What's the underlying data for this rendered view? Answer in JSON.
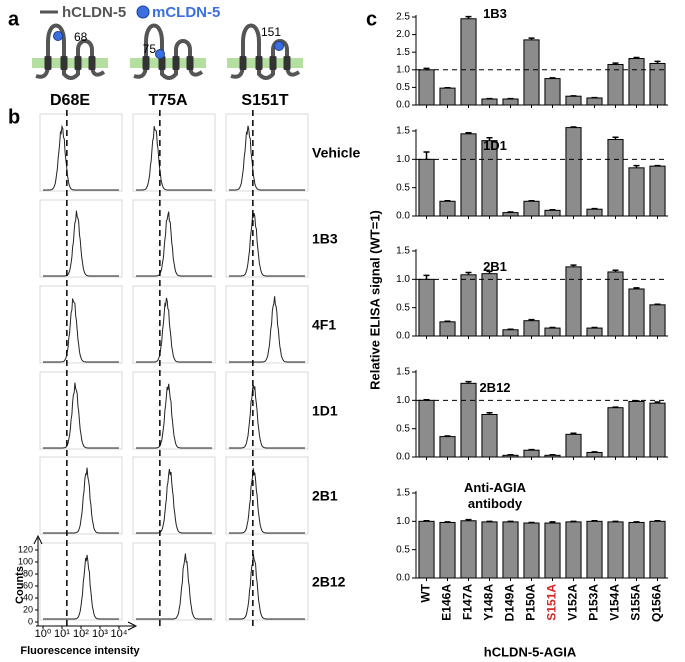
{
  "panel_a": {
    "label": "a",
    "legend": [
      {
        "name": "hCLDN-5",
        "color": "#555555"
      },
      {
        "name": "mCLDN-5",
        "color": "#3b6fe0"
      }
    ],
    "mutants": [
      {
        "label": "D68E",
        "site": "68"
      },
      {
        "label": "T75A",
        "site": "75"
      },
      {
        "label": "S151T",
        "site": "151"
      }
    ]
  },
  "panel_b": {
    "label": "b",
    "type": "flow-histograms",
    "rows": [
      "Vehicle",
      "1B3",
      "4F1",
      "1D1",
      "2B1",
      "2B12"
    ],
    "peaks": [
      [
        10,
        10,
        10
      ],
      [
        60,
        50,
        20
      ],
      [
        40,
        40,
        250
      ],
      [
        50,
        50,
        20
      ],
      [
        200,
        60,
        20
      ],
      [
        200,
        400,
        20
      ]
    ],
    "dashed_line": 18,
    "log_x": true,
    "xlim": [
      1,
      10000
    ],
    "xticks": [
      {
        "value": 1,
        "label": "10⁰"
      },
      {
        "value": 10,
        "label": "10¹"
      },
      {
        "value": 100,
        "label": "10²"
      },
      {
        "value": 1000,
        "label": "10³"
      },
      {
        "value": 10000,
        "label": "10⁴"
      }
    ],
    "ylim": [
      0,
      120
    ],
    "yticks": [
      0,
      20,
      40,
      60,
      80,
      100,
      120
    ],
    "xlabel": "Fluorescence intensity",
    "ylabel": "Counts"
  },
  "panel_c": {
    "label": "c",
    "ylabel": "Relative ELISA signal (WT=1)",
    "xlabel": "hCLDN-5-AGIA",
    "categories": [
      "WT",
      "E146A",
      "F147A",
      "Y148A",
      "D149A",
      "P150A",
      "S151A",
      "V152A",
      "P153A",
      "V154A",
      "S155A",
      "Q156A"
    ],
    "category_colors": [
      "#000000",
      "#000000",
      "#000000",
      "#000000",
      "#000000",
      "#000000",
      "#d62728",
      "#000000",
      "#000000",
      "#000000",
      "#000000",
      "#000000"
    ]
  },
  "chart_data": [
    {
      "type": "bar",
      "title": "1B3",
      "color": "#8c8c8c",
      "values": [
        1.0,
        0.48,
        2.45,
        0.17,
        0.17,
        1.85,
        0.75,
        0.25,
        0.2,
        1.15,
        1.32,
        1.18
      ],
      "errors": [
        0.04,
        0.01,
        0.06,
        0.01,
        0.01,
        0.05,
        0.02,
        0.01,
        0.01,
        0.04,
        0.03,
        0.06
      ],
      "ylim": [
        0,
        2.5
      ],
      "yticks": [
        {
          "value": 0,
          "label": "0.0"
        },
        0.5,
        {
          "value": 1,
          "label": "1.0"
        },
        1.5,
        {
          "value": 2,
          "label": "2.0"
        },
        2.5
      ],
      "reference_line": 1
    },
    {
      "type": "bar",
      "title": "1D1",
      "color": "#8c8c8c",
      "values": [
        1.0,
        0.26,
        1.45,
        1.33,
        0.06,
        0.26,
        0.1,
        1.56,
        0.12,
        1.35,
        0.85,
        0.88
      ],
      "errors": [
        0.13,
        0.01,
        0.02,
        0.05,
        0.01,
        0.01,
        0.01,
        0.01,
        0.01,
        0.04,
        0.04,
        0.01
      ],
      "ylim": [
        0,
        1.5
      ],
      "yticks": [
        {
          "value": 0,
          "label": "0.0"
        },
        0.5,
        {
          "value": 1,
          "label": "1.0"
        },
        1.5
      ],
      "reference_line": 1
    },
    {
      "type": "bar",
      "title": "2B1",
      "color": "#8c8c8c",
      "values": [
        1.0,
        0.25,
        1.08,
        1.1,
        0.11,
        0.27,
        0.14,
        1.22,
        0.14,
        1.13,
        0.83,
        0.55
      ],
      "errors": [
        0.07,
        0.01,
        0.04,
        0.04,
        0.01,
        0.02,
        0.01,
        0.03,
        0.01,
        0.03,
        0.02,
        0.01
      ],
      "ylim": [
        0,
        1.5
      ],
      "yticks": [
        {
          "value": 0,
          "label": "0.0"
        },
        0.5,
        {
          "value": 1,
          "label": "1.0"
        },
        1.5
      ],
      "reference_line": 1
    },
    {
      "type": "bar",
      "title": "2B12",
      "color": "#8c8c8c",
      "values": [
        1.0,
        0.36,
        1.3,
        0.75,
        0.03,
        0.12,
        0.03,
        0.4,
        0.08,
        0.87,
        0.98,
        0.95
      ],
      "errors": [
        0.01,
        0.01,
        0.03,
        0.03,
        0.01,
        0.01,
        0.01,
        0.02,
        0.01,
        0.01,
        0.01,
        0.02
      ],
      "ylim": [
        0,
        1.5
      ],
      "yticks": [
        {
          "value": 0,
          "label": "0.0"
        },
        0.5,
        {
          "value": 1,
          "label": "1.0"
        },
        1.5
      ],
      "reference_line": 1
    },
    {
      "type": "bar",
      "title": "Anti-AGIA antibody",
      "color": "#8c8c8c",
      "values": [
        1.0,
        0.98,
        1.01,
        0.99,
        0.99,
        0.97,
        0.97,
        0.99,
        1.0,
        0.99,
        0.98,
        1.0
      ],
      "errors": [
        0.01,
        0.01,
        0.02,
        0.01,
        0.01,
        0.01,
        0.02,
        0.01,
        0.01,
        0.01,
        0.01,
        0.01
      ],
      "ylim": [
        0,
        1.5
      ],
      "yticks": [
        {
          "value": 0,
          "label": "0.0"
        },
        0.5,
        {
          "value": 1,
          "label": "1.0"
        },
        1.5
      ]
    }
  ]
}
